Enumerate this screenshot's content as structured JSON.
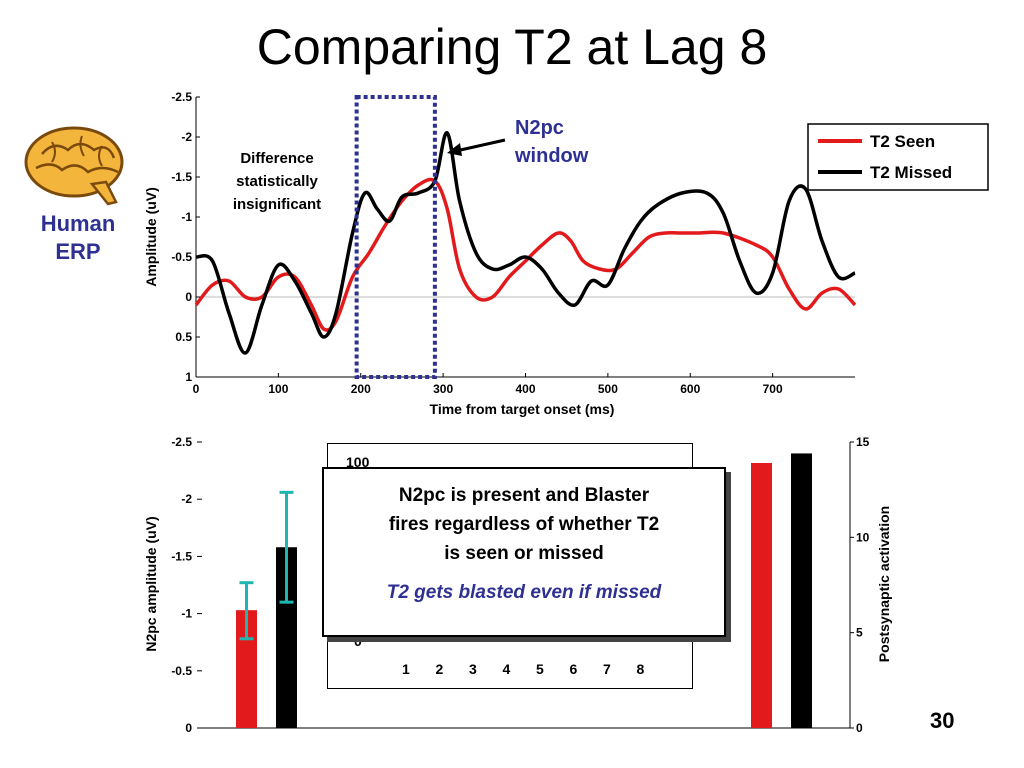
{
  "slide": {
    "title": "Comparing T2 at Lag 8",
    "human_label_line1": "Human",
    "human_label_line2": "ERP",
    "page_number": "30",
    "brain_icon": "brain-icon"
  },
  "annotations": {
    "difference_line1": "Difference",
    "difference_line2": "statistically",
    "difference_line3": "insignificant",
    "n2pc_line1": "N2pc",
    "n2pc_line2": "window",
    "window_color": "#2e3192"
  },
  "callout": {
    "main_line1": "N2pc is present and Blaster",
    "main_line2": "fires regardless of whether T2",
    "main_line3": "is seen or missed",
    "sub": "T2 gets blasted even if missed"
  },
  "inset": {
    "top_label": "100",
    "bottom_label": "0",
    "categories": [
      "1",
      "2",
      "3",
      "4",
      "5",
      "6",
      "7",
      "8"
    ]
  },
  "chart_data": [
    {
      "type": "line",
      "xlabel": "Time from target onset (ms)",
      "ylabel": "Amplitude (uV)",
      "xlim": [
        0,
        800
      ],
      "ylim": [
        1,
        -2.5
      ],
      "y_inverted": true,
      "x_ticks": [
        "0",
        "100",
        "200",
        "300",
        "400",
        "500",
        "600",
        "700"
      ],
      "y_ticks": [
        "-2.5",
        "-2",
        "-1.5",
        "-1",
        "-0.5",
        "0",
        "0.5",
        "1"
      ],
      "legend_position": "top-right",
      "highlight_window_ms": [
        195,
        290
      ],
      "series": [
        {
          "name": "T2 Seen",
          "color": "#e31a1c",
          "x": [
            0,
            20,
            40,
            60,
            80,
            100,
            120,
            140,
            155,
            170,
            190,
            210,
            230,
            250,
            270,
            290,
            305,
            320,
            340,
            360,
            380,
            400,
            420,
            440,
            455,
            470,
            490,
            510,
            530,
            550,
            570,
            590,
            610,
            640,
            680,
            700,
            720,
            740,
            760,
            780,
            800
          ],
          "y": [
            0.1,
            -0.15,
            -0.2,
            0.0,
            0.0,
            -0.25,
            -0.25,
            0.1,
            0.4,
            0.3,
            -0.25,
            -0.55,
            -0.9,
            -1.2,
            -1.4,
            -1.45,
            -1.1,
            -0.35,
            0.0,
            0.0,
            -0.25,
            -0.45,
            -0.65,
            -0.8,
            -0.7,
            -0.45,
            -0.35,
            -0.35,
            -0.55,
            -0.75,
            -0.8,
            -0.8,
            -0.8,
            -0.8,
            -0.65,
            -0.5,
            -0.1,
            0.15,
            -0.05,
            -0.1,
            0.1
          ]
        },
        {
          "name": "T2 Missed",
          "color": "#000000",
          "x": [
            0,
            20,
            40,
            60,
            80,
            100,
            120,
            140,
            155,
            170,
            190,
            205,
            220,
            235,
            250,
            270,
            290,
            305,
            320,
            340,
            360,
            380,
            400,
            420,
            440,
            460,
            480,
            500,
            520,
            540,
            560,
            590,
            620,
            640,
            660,
            680,
            700,
            720,
            740,
            760,
            780,
            800
          ],
          "y": [
            -0.5,
            -0.45,
            0.2,
            0.7,
            0.1,
            -0.4,
            -0.2,
            0.2,
            0.5,
            0.2,
            -0.8,
            -1.3,
            -1.1,
            -0.95,
            -1.25,
            -1.3,
            -1.45,
            -2.05,
            -1.2,
            -0.55,
            -0.35,
            -0.4,
            -0.5,
            -0.35,
            -0.05,
            0.1,
            -0.2,
            -0.15,
            -0.6,
            -0.95,
            -1.15,
            -1.3,
            -1.3,
            -1.05,
            -0.45,
            -0.05,
            -0.3,
            -1.2,
            -1.35,
            -0.7,
            -0.25,
            -0.3
          ]
        }
      ]
    },
    {
      "type": "bar",
      "ylabel": "N2pc amplitude (uV)",
      "y2label": "Postsynaptic activation",
      "ylim": [
        0,
        -2.5
      ],
      "y_inverted": true,
      "y_ticks": [
        "-2.5",
        "-2",
        "-1.5",
        "-1",
        "-0.5",
        "0"
      ],
      "y2lim": [
        0,
        15
      ],
      "y2_ticks": [
        "15",
        "10",
        "5",
        "0"
      ],
      "human_bars": [
        {
          "name": "T2 Seen",
          "color": "#e31a1c",
          "value": -1.03,
          "error_low": -0.78,
          "error_high": -1.27
        },
        {
          "name": "T2 Missed",
          "color": "#000000",
          "value": -1.58,
          "error_low": -1.1,
          "error_high": -2.06
        }
      ],
      "model_bars": [
        {
          "name": "T2 Seen",
          "color": "#e31a1c",
          "value": 13.9
        },
        {
          "name": "T2 Missed",
          "color": "#000000",
          "value": 14.4
        }
      ],
      "error_bar_color": "#1fb5b0"
    }
  ]
}
